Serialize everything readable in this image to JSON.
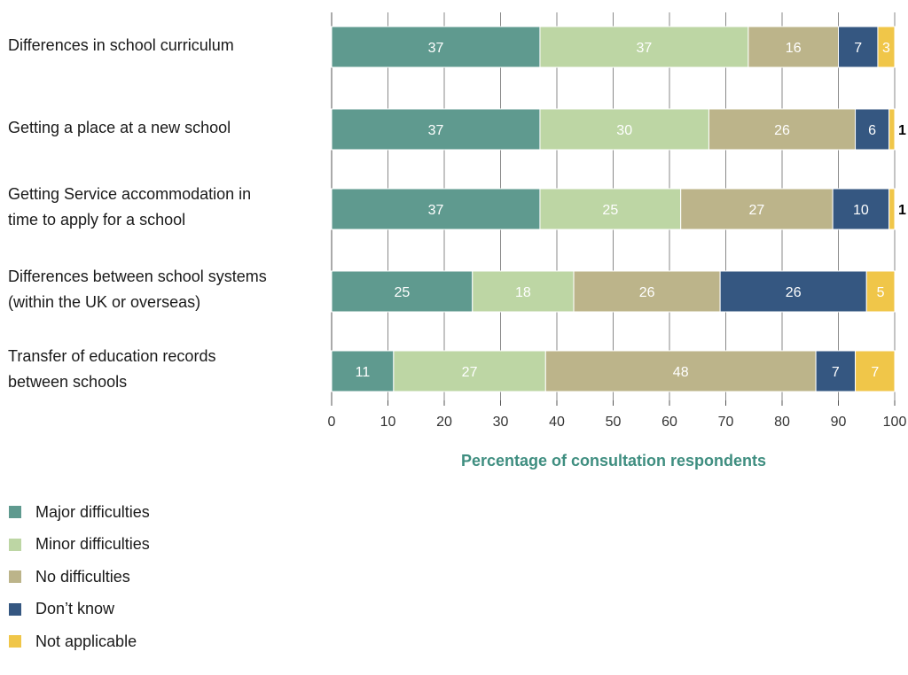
{
  "chart_data": {
    "type": "bar",
    "orientation": "horizontal",
    "stacked": true,
    "categories": [
      "Differences in school curriculum",
      "Getting a place at a new school",
      "Getting Service accommodation in time to apply for a school",
      "Differences between school systems (within the UK or overseas)",
      "Transfer of education records between schools"
    ],
    "category_lines": [
      [
        "Differences in school curriculum"
      ],
      [
        "Getting a place at a new school"
      ],
      [
        "Getting Service accommodation in",
        "time to apply for a school"
      ],
      [
        "Differences between school systems",
        "(within the UK or overseas)"
      ],
      [
        "Transfer of education records",
        "between schools"
      ]
    ],
    "series": [
      {
        "name": "Major difficulties",
        "color": "#5f9a8f",
        "values": [
          37,
          37,
          37,
          25,
          11
        ]
      },
      {
        "name": "Minor difficulties",
        "color": "#bdd6a4",
        "values": [
          37,
          30,
          25,
          18,
          27
        ]
      },
      {
        "name": "No difficulties",
        "color": "#bcb48a",
        "values": [
          16,
          26,
          27,
          26,
          48
        ]
      },
      {
        "name": "Don’t know",
        "color": "#355781",
        "values": [
          7,
          6,
          10,
          26,
          7
        ]
      },
      {
        "name": "Not applicable",
        "color": "#f0c649",
        "values": [
          3,
          1,
          1,
          5,
          7
        ]
      }
    ],
    "xlabel": "Percentage of consultation respondents",
    "xlim": [
      0,
      100
    ],
    "xticks": [
      0,
      10,
      20,
      30,
      40,
      50,
      60,
      70,
      80,
      90,
      100
    ],
    "grid": true,
    "legend_position": "bottom-left"
  }
}
